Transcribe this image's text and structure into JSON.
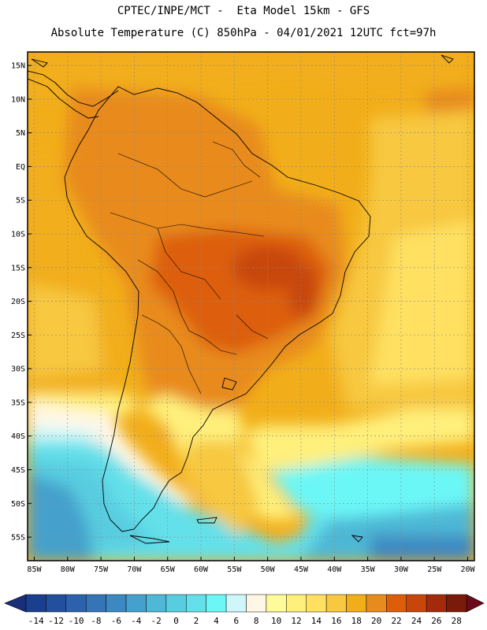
{
  "header": {
    "line1": "CPTEC/INPE/MCT -  Eta Model 15km - GFS",
    "line2": "Absolute Temperature (C) 850hPa - 04/01/2021 12UTC fct=97h"
  },
  "map": {
    "lon_range": [
      -86,
      -19
    ],
    "lat_range": [
      -58.5,
      17
    ],
    "lat_ticks": [
      {
        "value": 15,
        "label": "15N"
      },
      {
        "value": 10,
        "label": "10N"
      },
      {
        "value": 5,
        "label": "5N"
      },
      {
        "value": 0,
        "label": "EQ"
      },
      {
        "value": -5,
        "label": "5S"
      },
      {
        "value": -10,
        "label": "10S"
      },
      {
        "value": -15,
        "label": "15S"
      },
      {
        "value": -20,
        "label": "20S"
      },
      {
        "value": -25,
        "label": "25S"
      },
      {
        "value": -30,
        "label": "30S"
      },
      {
        "value": -35,
        "label": "35S"
      },
      {
        "value": -40,
        "label": "40S"
      },
      {
        "value": -45,
        "label": "45S"
      },
      {
        "value": -50,
        "label": "50S"
      },
      {
        "value": -55,
        "label": "55S"
      }
    ],
    "lon_ticks": [
      {
        "value": -85,
        "label": "85W"
      },
      {
        "value": -80,
        "label": "80W"
      },
      {
        "value": -75,
        "label": "75W"
      },
      {
        "value": -70,
        "label": "70W"
      },
      {
        "value": -65,
        "label": "65W"
      },
      {
        "value": -60,
        "label": "60W"
      },
      {
        "value": -55,
        "label": "55W"
      },
      {
        "value": -50,
        "label": "50W"
      },
      {
        "value": -45,
        "label": "45W"
      },
      {
        "value": -40,
        "label": "40W"
      },
      {
        "value": -35,
        "label": "35W"
      },
      {
        "value": -30,
        "label": "30W"
      },
      {
        "value": -25,
        "label": "25W"
      },
      {
        "value": -20,
        "label": "20W"
      }
    ]
  },
  "colorbar": {
    "labels": [
      "-14",
      "-12",
      "-10",
      "-8",
      "-6",
      "-4",
      "-2",
      "0",
      "2",
      "4",
      "6",
      "8",
      "10",
      "12",
      "14",
      "16",
      "18",
      "20",
      "22",
      "24",
      "26",
      "28"
    ],
    "colors": [
      "#1a3f8f",
      "#22509e",
      "#2c62ad",
      "#3574b7",
      "#3c88c2",
      "#44a0cc",
      "#4eb8d6",
      "#58cde0",
      "#63e0ea",
      "#6cf7f7",
      "#cff7fb",
      "#fff7e6",
      "#fffb9a",
      "#fff07c",
      "#ffe060",
      "#f7c840",
      "#f2ae1a",
      "#e88b1e",
      "#dd5e0a",
      "#c8460a",
      "#a32a0a",
      "#7a1a0a"
    ],
    "low_arrow_color": "#1a2f7a",
    "high_arrow_color": "#6b0a1a"
  }
}
